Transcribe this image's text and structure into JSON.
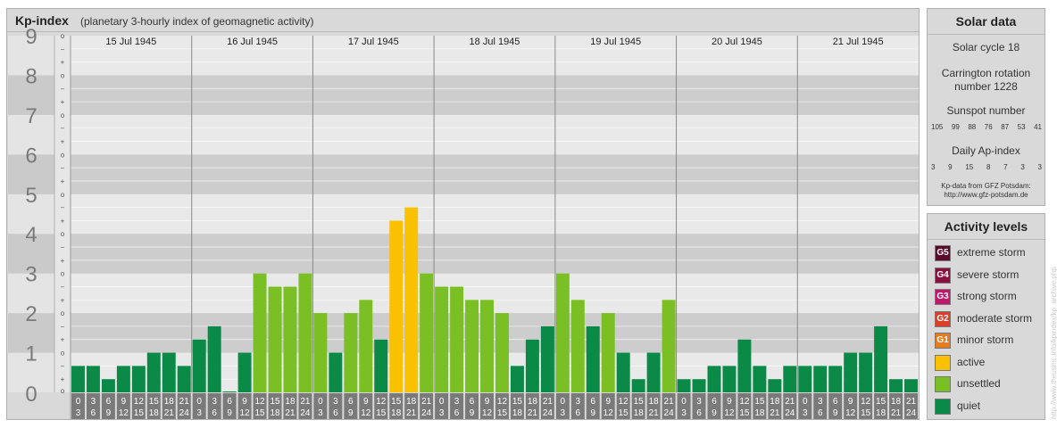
{
  "header": {
    "title": "Kp-index",
    "subtitle": "(planetary 3-hourly index of geomagnetic activity)"
  },
  "chart_data": {
    "type": "bar",
    "y_axis_labels": [
      "0",
      "1",
      "2",
      "3",
      "4",
      "5",
      "6",
      "7",
      "8",
      "9"
    ],
    "sub_tick_labels": [
      "o",
      "+",
      "−"
    ],
    "ylim": [
      0,
      9
    ],
    "days": [
      "15 Jul 1945",
      "16 Jul 1945",
      "17 Jul 1945",
      "18 Jul 1945",
      "19 Jul 1945",
      "20 Jul 1945",
      "21 Jul 1945"
    ],
    "interval_starts": [
      "0",
      "3",
      "6",
      "9",
      "12",
      "15",
      "18",
      "21"
    ],
    "interval_ends": [
      "3",
      "6",
      "9",
      "12",
      "15",
      "18",
      "21",
      "24"
    ],
    "values": [
      0.667,
      0.667,
      0.333,
      0.667,
      0.667,
      1.0,
      1.0,
      0.667,
      1.333,
      1.667,
      0.0,
      1.0,
      3.0,
      2.667,
      2.667,
      3.0,
      2.0,
      1.0,
      2.0,
      2.333,
      1.333,
      4.333,
      4.667,
      3.0,
      2.667,
      2.667,
      2.333,
      2.333,
      2.0,
      0.667,
      1.333,
      1.667,
      3.0,
      2.333,
      1.667,
      2.0,
      1.0,
      0.333,
      1.0,
      2.333,
      0.333,
      0.333,
      0.667,
      0.667,
      1.333,
      0.667,
      0.333,
      0.667,
      0.667,
      0.667,
      0.667,
      1.0,
      1.0,
      1.667,
      0.333,
      0.333
    ],
    "colors": {
      "quiet": "#0a8a46",
      "unsettled": "#7ac024",
      "active": "#f9c100",
      "minor_storm": "#e57c20"
    }
  },
  "solar": {
    "title": "Solar data",
    "cycle": "Solar cycle 18",
    "carrington_1": "Carrington rotation",
    "carrington_2": "number 1228",
    "sunspot_label": "Sunspot number",
    "sunspots": [
      "105",
      "99",
      "88",
      "76",
      "87",
      "53",
      "41"
    ],
    "ap_label": "Daily Ap-index",
    "ap": [
      "3",
      "9",
      "15",
      "8",
      "7",
      "3",
      "3"
    ],
    "credit_1": "Kp-data from GFZ Potsdam:",
    "credit_2": "http://www.gfz-potsdam.de"
  },
  "levels": {
    "title": "Activity levels",
    "items": [
      {
        "badge": "G5",
        "label": "extreme storm",
        "color": "#5a0a2a"
      },
      {
        "badge": "G4",
        "label": "severe storm",
        "color": "#8a1040"
      },
      {
        "badge": "G3",
        "label": "strong storm",
        "color": "#c0186a"
      },
      {
        "badge": "G2",
        "label": "moderate storm",
        "color": "#d8402a"
      },
      {
        "badge": "G1",
        "label": "minor storm",
        "color": "#e57c20"
      },
      {
        "badge": "",
        "label": "active",
        "color": "#f9c100"
      },
      {
        "badge": "",
        "label": "unsettled",
        "color": "#7ac024"
      },
      {
        "badge": "",
        "label": "quiet",
        "color": "#0a8a46"
      }
    ]
  },
  "watermark": "http://www.theusmc.info/kpindex/kp_archive.php"
}
